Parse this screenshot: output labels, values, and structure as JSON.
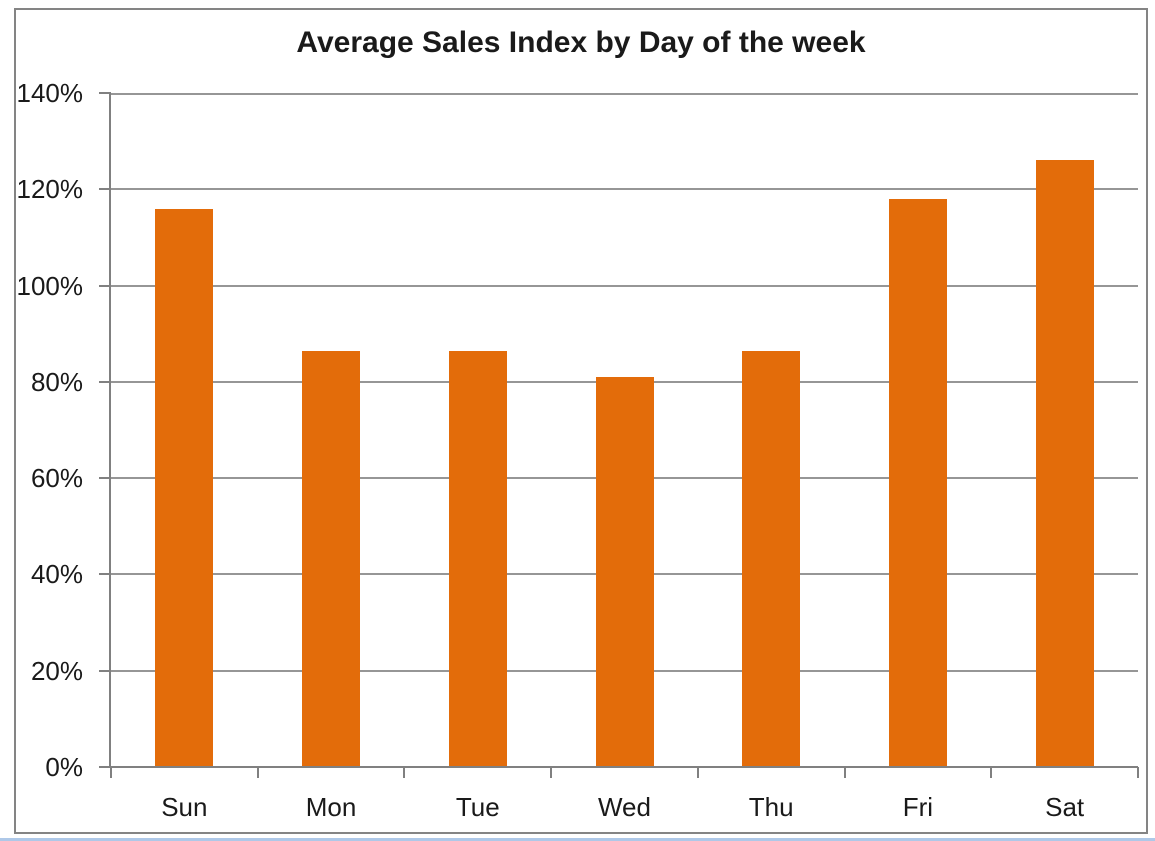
{
  "chart_data": {
    "type": "bar",
    "title": "Average Sales Index by Day of the week",
    "categories": [
      "Sun",
      "Mon",
      "Tue",
      "Wed",
      "Thu",
      "Fri",
      "Sat"
    ],
    "values": [
      116,
      86.5,
      86.5,
      81,
      86.5,
      118,
      126
    ],
    "unit": "%",
    "xlabel": "",
    "ylabel": "",
    "ylim": [
      0,
      140
    ],
    "ytick_step": 20,
    "y_tick_labels": [
      "0%",
      "20%",
      "40%",
      "60%",
      "80%",
      "100%",
      "120%",
      "140%"
    ],
    "grid": true,
    "legend": false,
    "bar_color": "#E36C0A"
  },
  "colors": {
    "bar": "#E36C0A",
    "gridline": "#969696",
    "axis": "#808080",
    "chart_border": "#848484",
    "bottom_line": "#AEC8E8",
    "text": "#1A1A1A",
    "background": "#FFFFFF"
  }
}
